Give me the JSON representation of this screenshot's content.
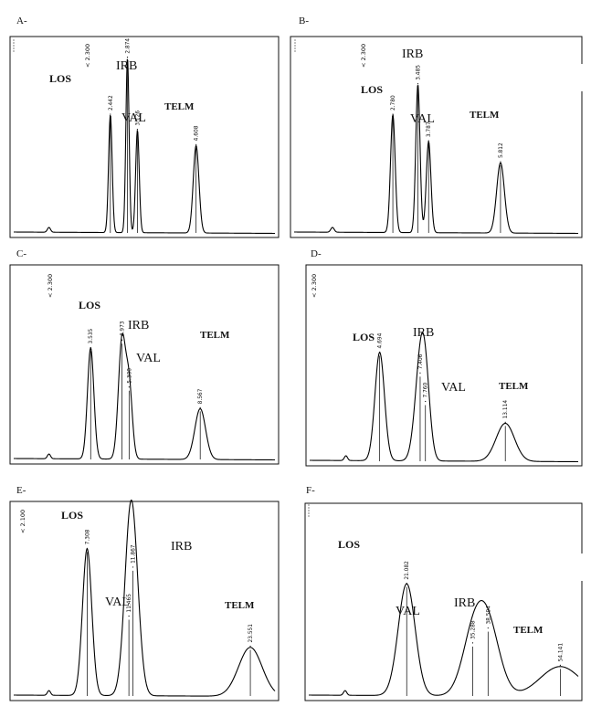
{
  "chart_data": [
    {
      "type": "line",
      "panel_label": "A-",
      "injection_marker": "< 2.300",
      "x_range_min": [
        0,
        6.6
      ],
      "peaks": [
        {
          "compound": "LOS",
          "rt": 2.442,
          "rt_label": "2.442",
          "height": 0.62,
          "width": 0.05
        },
        {
          "compound": "IRB",
          "rt": 2.874,
          "rt_label": "2.874",
          "height": 0.92,
          "width": 0.045
        },
        {
          "compound": "VAL",
          "rt": 3.126,
          "rt_label": "3.126",
          "height": 0.54,
          "width": 0.05
        },
        {
          "compound": "TELM",
          "rt": 4.608,
          "rt_label": "4.608",
          "height": 0.46,
          "width": 0.08
        }
      ]
    },
    {
      "type": "line",
      "panel_label": "B-",
      "injection_marker": "< 2.300",
      "x_range_min": [
        0,
        8.0
      ],
      "peaks": [
        {
          "compound": "LOS",
          "rt": 2.78,
          "rt_label": "2.780",
          "height": 0.62,
          "width": 0.06
        },
        {
          "compound": "IRB",
          "rt": 3.485,
          "rt_label": "3.485",
          "height": 0.78,
          "width": 0.055
        },
        {
          "compound": "VAL",
          "rt": 3.787,
          "rt_label": "3.787",
          "height": 0.48,
          "width": 0.06
        },
        {
          "compound": "TELM",
          "rt": 5.812,
          "rt_label": "5.812",
          "height": 0.37,
          "width": 0.1
        }
      ]
    },
    {
      "type": "line",
      "panel_label": "C-",
      "injection_marker": "< 2.300",
      "x_range_min": [
        0,
        12.0
      ],
      "peaks": [
        {
          "compound": "LOS",
          "rt": 3.535,
          "rt_label": "3.535",
          "height": 0.59,
          "width": 0.09
        },
        {
          "compound": "IRB",
          "rt": 4.973,
          "rt_label": "4.973",
          "height": 0.63,
          "width": 0.1
        },
        {
          "compound": "VAL",
          "rt": 5.3,
          "rt_label": "5.300",
          "height": 0.38,
          "width": 0.09
        },
        {
          "compound": "TELM",
          "rt": 8.567,
          "rt_label": "8.567",
          "height": 0.27,
          "width": 0.15
        }
      ]
    },
    {
      "type": "line",
      "panel_label": "D-",
      "injection_marker": "< 2.300",
      "x_range_min": [
        0,
        18.0
      ],
      "peaks": [
        {
          "compound": "LOS",
          "rt": 4.694,
          "rt_label": "4.694",
          "height": 0.57,
          "width": 0.13
        },
        {
          "compound": "IRB",
          "rt": 7.406,
          "rt_label": "7.406",
          "height": 0.46,
          "width": 0.15
        },
        {
          "compound": "VAL",
          "rt": 7.76,
          "rt_label": "7.760",
          "height": 0.31,
          "width": 0.13
        },
        {
          "compound": "TELM",
          "rt": 13.114,
          "rt_label": "13.114",
          "height": 0.2,
          "width": 0.25
        }
      ]
    },
    {
      "type": "line",
      "panel_label": "E-",
      "injection_marker": "< 2.100",
      "x_range_min": [
        0,
        26.0
      ],
      "peaks": [
        {
          "compound": "LOS",
          "rt": 7.308,
          "rt_label": "7.308",
          "height": 0.78,
          "width": 0.13
        },
        {
          "compound": "VAL",
          "rt": 11.465,
          "rt_label": "11.465",
          "height": 0.42,
          "width": 0.16
        },
        {
          "compound": "IRB",
          "rt": 11.867,
          "rt_label": "11.867",
          "height": 0.68,
          "width": 0.17
        },
        {
          "compound": "TELM",
          "rt": 23.551,
          "rt_label": "23.551",
          "height": 0.26,
          "width": 0.33
        }
      ]
    },
    {
      "type": "line",
      "panel_label": "F-",
      "injection_marker": "",
      "x_range_min": [
        0,
        58.0
      ],
      "peaks": [
        {
          "compound": "LOS",
          "rt": 21.082,
          "rt_label": "21.082",
          "height": 0.6,
          "width": 0.23
        },
        {
          "compound": "VAL",
          "rt": 35.288,
          "rt_label": "35.288",
          "height": 0.28,
          "width": 0.3
        },
        {
          "compound": "IRB",
          "rt": 38.594,
          "rt_label": "38.594",
          "height": 0.36,
          "width": 0.32
        },
        {
          "compound": "TELM",
          "rt": 54.141,
          "rt_label": "54.141",
          "height": 0.16,
          "width": 0.55
        }
      ]
    }
  ]
}
